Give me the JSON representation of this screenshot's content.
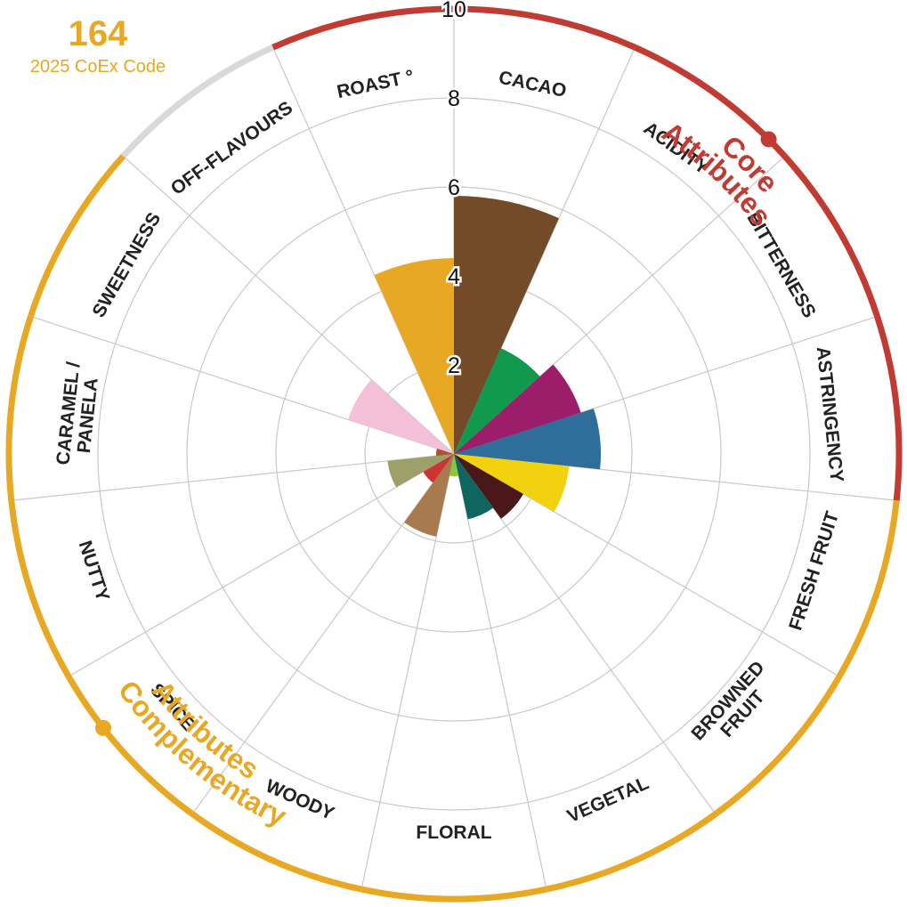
{
  "header": {
    "code": "164",
    "code_label": "2025 CoEx Code"
  },
  "colors": {
    "core": "#c23b33",
    "complementary": "#e8a823",
    "off": "#d9d9d9",
    "grid": "#c8c8c8"
  },
  "groups": [
    {
      "label_lines": [
        "Core",
        "Attributes"
      ],
      "color": "#c23b33"
    },
    {
      "label_lines": [
        "Complementary",
        "Attributes"
      ],
      "color": "#e8a823"
    }
  ],
  "chart_data": {
    "type": "polar-bar",
    "rlim": [
      0,
      10
    ],
    "ticks": [
      2,
      4,
      6,
      8,
      10
    ],
    "grid": true,
    "categories": [
      {
        "name": "CACAO",
        "lines": [
          "CACAO"
        ],
        "value": 5.8,
        "color": "#744b28",
        "group": "core"
      },
      {
        "name": "ACIDITY",
        "lines": [
          "ACIDITY"
        ],
        "value": 2.6,
        "color": "#11994d",
        "group": "core"
      },
      {
        "name": "BITTERNESS",
        "lines": [
          "BITTERNESS"
        ],
        "value": 3.0,
        "color": "#9c1e6a",
        "group": "core"
      },
      {
        "name": "ASTRINGENCY",
        "lines": [
          "ASTRINGENCY"
        ],
        "value": 3.3,
        "color": "#2f6e9b",
        "group": "core"
      },
      {
        "name": "FRESH FRUIT",
        "lines": [
          "FRESH FRUIT"
        ],
        "value": 2.6,
        "color": "#f2d10f",
        "group": "complementary"
      },
      {
        "name": "BROWNED FRUIT",
        "lines": [
          "BROWNED",
          "FRUIT"
        ],
        "value": 1.8,
        "color": "#4a1818",
        "group": "complementary"
      },
      {
        "name": "VEGETAL",
        "lines": [
          "VEGETAL"
        ],
        "value": 1.5,
        "color": "#0f6660",
        "group": "complementary"
      },
      {
        "name": "FLORAL",
        "lines": [
          "FLORAL"
        ],
        "value": 0.5,
        "color": "#8cc63f",
        "group": "complementary"
      },
      {
        "name": "WOODY",
        "lines": [
          "WOODY"
        ],
        "value": 1.9,
        "color": "#a87b4f",
        "group": "complementary"
      },
      {
        "name": "SPICE",
        "lines": [
          "SPICE"
        ],
        "value": 0.8,
        "color": "#cc3333",
        "group": "complementary"
      },
      {
        "name": "NUTTY",
        "lines": [
          "NUTTY"
        ],
        "value": 1.5,
        "color": "#9ea06a",
        "group": "complementary"
      },
      {
        "name": "CARAMEL / PANELA",
        "lines": [
          "CARAMEL /",
          "PANELA"
        ],
        "value": 0.4,
        "color": "#a9552f",
        "group": "complementary"
      },
      {
        "name": "SWEETNESS",
        "lines": [
          "SWEETNESS"
        ],
        "value": 2.5,
        "color": "#f4bfd9",
        "group": "complementary"
      },
      {
        "name": "OFF-FLAVOURS",
        "lines": [
          "OFF-FLAVOURS"
        ],
        "value": 0,
        "color": "#9e9e9e",
        "group": "off"
      },
      {
        "name": "ROAST °",
        "lines": [
          "ROAST °"
        ],
        "value": 4.4,
        "color": "#e8a823",
        "group": "core"
      }
    ]
  }
}
